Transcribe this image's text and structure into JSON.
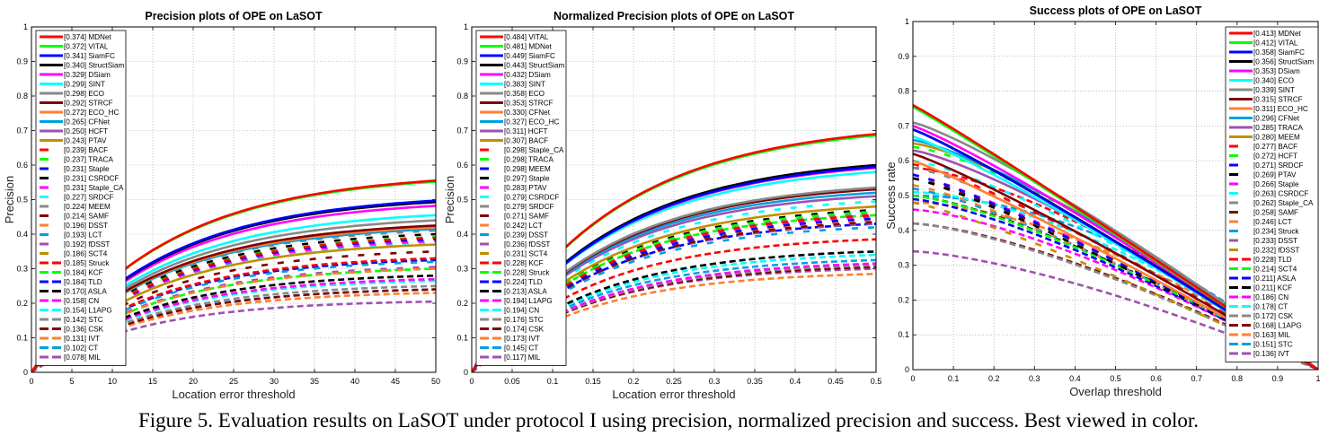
{
  "caption": "Figure 5. Evaluation results on LaSOT under protocol I using precision, normalized precision and success. Best viewed in color.",
  "chart_data": [
    {
      "type": "line",
      "title": "Precision plots of OPE on LaSOT",
      "xlabel": "Location error threshold",
      "ylabel": "Precision",
      "xlim": [
        0,
        50
      ],
      "ylim": [
        0,
        1
      ],
      "xticks": [
        "0",
        "5",
        "10",
        "15",
        "20",
        "25",
        "30",
        "35",
        "40",
        "45",
        "50"
      ],
      "yticks": [
        "0",
        "0.1",
        "0.2",
        "0.3",
        "0.4",
        "0.5",
        "0.6",
        "0.7",
        "0.8",
        "0.9",
        "1"
      ],
      "grid": true,
      "legend_position": "top-left",
      "curve_kind": "rising",
      "series": [
        {
          "name": "MDNet",
          "score": "0.374",
          "color": "#ff0000",
          "style": "solid",
          "end": 0.555
        },
        {
          "name": "VITAL",
          "score": "0.372",
          "color": "#00ff00",
          "style": "solid",
          "end": 0.552
        },
        {
          "name": "SiamFC",
          "score": "0.341",
          "color": "#0000ff",
          "style": "solid",
          "end": 0.497
        },
        {
          "name": "StructSiam",
          "score": "0.340",
          "color": "#000000",
          "style": "solid",
          "end": 0.493
        },
        {
          "name": "DSiam",
          "score": "0.329",
          "color": "#ff00ff",
          "style": "solid",
          "end": 0.482
        },
        {
          "name": "SINT",
          "score": "0.299",
          "color": "#00ffff",
          "style": "solid",
          "end": 0.455
        },
        {
          "name": "ECO",
          "score": "0.298",
          "color": "#888888",
          "style": "solid",
          "end": 0.44
        },
        {
          "name": "STRCF",
          "score": "0.292",
          "color": "#800000",
          "style": "solid",
          "end": 0.425
        },
        {
          "name": "ECO_HC",
          "score": "0.272",
          "color": "#ff8030",
          "style": "solid",
          "end": 0.42
        },
        {
          "name": "CFNet",
          "score": "0.265",
          "color": "#00a0e0",
          "style": "solid",
          "end": 0.415
        },
        {
          "name": "HCFT",
          "score": "0.250",
          "color": "#a050b0",
          "style": "solid",
          "end": 0.418
        },
        {
          "name": "PTAV",
          "score": "0.243",
          "color": "#c09000",
          "style": "solid",
          "end": 0.37
        },
        {
          "name": "BACF",
          "score": "0.239",
          "color": "#ff0000",
          "style": "sparse",
          "end": 0.39
        },
        {
          "name": "TRACA",
          "score": "0.237",
          "color": "#00ff00",
          "style": "sparse",
          "end": 0.392
        },
        {
          "name": "Staple",
          "score": "0.231",
          "color": "#0000ff",
          "style": "sparse",
          "end": 0.386
        },
        {
          "name": "CSRDCF",
          "score": "0.231",
          "color": "#000000",
          "style": "sparse",
          "end": 0.4
        },
        {
          "name": "Staple_CA",
          "score": "0.231",
          "color": "#ff00ff",
          "style": "sparse",
          "end": 0.38
        },
        {
          "name": "SRDCF",
          "score": "0.227",
          "color": "#00ffff",
          "style": "sparse",
          "end": 0.375
        },
        {
          "name": "MEEM",
          "score": "0.224",
          "color": "#888888",
          "style": "sparse",
          "end": 0.41
        },
        {
          "name": "SAMF",
          "score": "0.214",
          "color": "#800000",
          "style": "sparse",
          "end": 0.35
        },
        {
          "name": "DSST",
          "score": "0.196",
          "color": "#ff8030",
          "style": "sparse",
          "end": 0.3
        },
        {
          "name": "LCT",
          "score": "0.193",
          "color": "#00a0e0",
          "style": "sparse",
          "end": 0.32
        },
        {
          "name": "fDSST",
          "score": "0.192",
          "color": "#a050b0",
          "style": "sparse",
          "end": 0.305
        },
        {
          "name": "SCT4",
          "score": "0.186",
          "color": "#c09000",
          "style": "sparse",
          "end": 0.3
        },
        {
          "name": "Struck",
          "score": "0.185",
          "color": "#ff0000",
          "style": "dashed",
          "end": 0.33
        },
        {
          "name": "KCF",
          "score": "0.184",
          "color": "#00ff00",
          "style": "dashed",
          "end": 0.3
        },
        {
          "name": "TLD",
          "score": "0.184",
          "color": "#0000ff",
          "style": "dashed",
          "end": 0.325
        },
        {
          "name": "ASLA",
          "score": "0.170",
          "color": "#000000",
          "style": "dashed",
          "end": 0.28
        },
        {
          "name": "CN",
          "score": "0.158",
          "color": "#ff00ff",
          "style": "dashed",
          "end": 0.27
        },
        {
          "name": "L1APG",
          "score": "0.154",
          "color": "#00ffff",
          "style": "dashed",
          "end": 0.265
        },
        {
          "name": "STC",
          "score": "0.142",
          "color": "#888888",
          "style": "dashed",
          "end": 0.25
        },
        {
          "name": "CSK",
          "score": "0.136",
          "color": "#800000",
          "style": "dashed",
          "end": 0.24
        },
        {
          "name": "IVT",
          "score": "0.131",
          "color": "#ff8030",
          "style": "dashed",
          "end": 0.23
        },
        {
          "name": "CT",
          "score": "0.102",
          "color": "#00a0e0",
          "style": "dashed",
          "end": 0.24
        },
        {
          "name": "MIL",
          "score": "0.078",
          "color": "#a050b0",
          "style": "dashed",
          "end": 0.205
        }
      ]
    },
    {
      "type": "line",
      "title": "Normalized Precision plots of OPE on LaSOT",
      "xlabel": "Location error threshold",
      "ylabel": "Precision",
      "xlim": [
        0,
        0.5
      ],
      "ylim": [
        0,
        1
      ],
      "xticks": [
        "0",
        "0.05",
        "0.1",
        "0.15",
        "0.2",
        "0.25",
        "0.3",
        "0.35",
        "0.4",
        "0.45",
        "0.5"
      ],
      "yticks": [
        "0",
        "0.1",
        "0.2",
        "0.3",
        "0.4",
        "0.5",
        "0.6",
        "0.7",
        "0.8",
        "0.9",
        "1"
      ],
      "grid": true,
      "legend_position": "top-left",
      "curve_kind": "rising",
      "series": [
        {
          "name": "VITAL",
          "score": "0.484",
          "color": "#ff0000",
          "style": "solid",
          "end": 0.69
        },
        {
          "name": "MDNet",
          "score": "0.481",
          "color": "#00ff00",
          "style": "solid",
          "end": 0.686
        },
        {
          "name": "SiamFC",
          "score": "0.449",
          "color": "#0000ff",
          "style": "solid",
          "end": 0.595
        },
        {
          "name": "StructSiam",
          "score": "0.443",
          "color": "#000000",
          "style": "solid",
          "end": 0.6
        },
        {
          "name": "DSiam",
          "score": "0.432",
          "color": "#ff00ff",
          "style": "solid",
          "end": 0.592
        },
        {
          "name": "SINT",
          "score": "0.383",
          "color": "#00ffff",
          "style": "solid",
          "end": 0.58
        },
        {
          "name": "ECO",
          "score": "0.358",
          "color": "#888888",
          "style": "solid",
          "end": 0.535
        },
        {
          "name": "STRCF",
          "score": "0.353",
          "color": "#800000",
          "style": "solid",
          "end": 0.53
        },
        {
          "name": "CFNet",
          "score": "0.330",
          "color": "#ff8030",
          "style": "solid",
          "end": 0.53
        },
        {
          "name": "ECO_HC",
          "score": "0.327",
          "color": "#00a0e0",
          "style": "solid",
          "end": 0.52
        },
        {
          "name": "HCFT",
          "score": "0.311",
          "color": "#a050b0",
          "style": "solid",
          "end": 0.51
        },
        {
          "name": "BACF",
          "score": "0.307",
          "color": "#c09000",
          "style": "solid",
          "end": 0.48
        },
        {
          "name": "Staple_CA",
          "score": "0.298",
          "color": "#ff0000",
          "style": "sparse",
          "end": 0.455
        },
        {
          "name": "TRACA",
          "score": "0.298",
          "color": "#00ff00",
          "style": "sparse",
          "end": 0.465
        },
        {
          "name": "MEEM",
          "score": "0.298",
          "color": "#0000ff",
          "style": "sparse",
          "end": 0.445
        },
        {
          "name": "Staple",
          "score": "0.297",
          "color": "#000000",
          "style": "sparse",
          "end": 0.47
        },
        {
          "name": "PTAV",
          "score": "0.283",
          "color": "#ff00ff",
          "style": "sparse",
          "end": 0.45
        },
        {
          "name": "CSRDCF",
          "score": "0.279",
          "color": "#00ffff",
          "style": "sparse",
          "end": 0.495
        },
        {
          "name": "SRDCF",
          "score": "0.279",
          "color": "#888888",
          "style": "sparse",
          "end": 0.46
        },
        {
          "name": "SAMF",
          "score": "0.271",
          "color": "#800000",
          "style": "sparse",
          "end": 0.435
        },
        {
          "name": "LCT",
          "score": "0.242",
          "color": "#ff8030",
          "style": "sparse",
          "end": 0.44
        },
        {
          "name": "DSST",
          "score": "0.239",
          "color": "#00a0e0",
          "style": "sparse",
          "end": 0.42
        },
        {
          "name": "fDSST",
          "score": "0.236",
          "color": "#a050b0",
          "style": "sparse",
          "end": 0.43
        },
        {
          "name": "SCT4",
          "score": "0.231",
          "color": "#c09000",
          "style": "sparse",
          "end": 0.44
        },
        {
          "name": "KCF",
          "score": "0.228",
          "color": "#ff0000",
          "style": "dashed",
          "end": 0.385
        },
        {
          "name": "Struck",
          "score": "0.228",
          "color": "#00ff00",
          "style": "dashed",
          "end": 0.455
        },
        {
          "name": "TLD",
          "score": "0.224",
          "color": "#0000ff",
          "style": "dashed",
          "end": 0.43
        },
        {
          "name": "ASLA",
          "score": "0.213",
          "color": "#000000",
          "style": "dashed",
          "end": 0.35
        },
        {
          "name": "L1APG",
          "score": "0.194",
          "color": "#ff00ff",
          "style": "dashed",
          "end": 0.315
        },
        {
          "name": "CN",
          "score": "0.194",
          "color": "#00ffff",
          "style": "dashed",
          "end": 0.34
        },
        {
          "name": "STC",
          "score": "0.176",
          "color": "#888888",
          "style": "dashed",
          "end": 0.31
        },
        {
          "name": "CSK",
          "score": "0.174",
          "color": "#800000",
          "style": "dashed",
          "end": 0.305
        },
        {
          "name": "IVT",
          "score": "0.173",
          "color": "#ff8030",
          "style": "dashed",
          "end": 0.285
        },
        {
          "name": "CT",
          "score": "0.145",
          "color": "#00a0e0",
          "style": "dashed",
          "end": 0.325
        },
        {
          "name": "MIL",
          "score": "0.117",
          "color": "#a050b0",
          "style": "dashed",
          "end": 0.3
        }
      ]
    },
    {
      "type": "line",
      "title": "Success plots of OPE on LaSOT",
      "xlabel": "Overlap threshold",
      "ylabel": "Success rate",
      "xlim": [
        0,
        1
      ],
      "ylim": [
        0,
        1
      ],
      "xticks": [
        "0",
        "0.1",
        "0.2",
        "0.3",
        "0.4",
        "0.5",
        "0.6",
        "0.7",
        "0.8",
        "0.9",
        "1"
      ],
      "yticks": [
        "0",
        "0.1",
        "0.2",
        "0.3",
        "0.4",
        "0.5",
        "0.6",
        "0.7",
        "0.8",
        "0.9",
        "1"
      ],
      "grid": true,
      "legend_position": "top-right",
      "curve_kind": "falling",
      "series": [
        {
          "name": "MDNet",
          "score": "0.413",
          "color": "#ff0000",
          "style": "solid",
          "start": 0.76
        },
        {
          "name": "VITAL",
          "score": "0.412",
          "color": "#00ff00",
          "style": "solid",
          "start": 0.755
        },
        {
          "name": "SiamFC",
          "score": "0.358",
          "color": "#0000ff",
          "style": "solid",
          "start": 0.69
        },
        {
          "name": "StructSiam",
          "score": "0.356",
          "color": "#000000",
          "style": "solid",
          "start": 0.69
        },
        {
          "name": "DSiam",
          "score": "0.353",
          "color": "#ff00ff",
          "style": "solid",
          "start": 0.7
        },
        {
          "name": "ECO",
          "score": "0.340",
          "color": "#00ffff",
          "style": "solid",
          "start": 0.67
        },
        {
          "name": "SINT",
          "score": "0.339",
          "color": "#888888",
          "style": "solid",
          "start": 0.71
        },
        {
          "name": "STRCF",
          "score": "0.315",
          "color": "#800000",
          "style": "solid",
          "start": 0.62
        },
        {
          "name": "ECO_HC",
          "score": "0.311",
          "color": "#ff8030",
          "style": "solid",
          "start": 0.6
        },
        {
          "name": "CFNet",
          "score": "0.296",
          "color": "#00a0e0",
          "style": "solid",
          "start": 0.66
        },
        {
          "name": "TRACA",
          "score": "0.285",
          "color": "#a050b0",
          "style": "solid",
          "start": 0.63
        },
        {
          "name": "MEEM",
          "score": "0.280",
          "color": "#c09000",
          "style": "solid",
          "start": 0.65
        },
        {
          "name": "BACF",
          "score": "0.277",
          "color": "#ff0000",
          "style": "sparse",
          "start": 0.59
        },
        {
          "name": "HCFT",
          "score": "0.272",
          "color": "#00ff00",
          "style": "sparse",
          "start": 0.64
        },
        {
          "name": "SRDCF",
          "score": "0.271",
          "color": "#0000ff",
          "style": "sparse",
          "start": 0.56
        },
        {
          "name": "PTAV",
          "score": "0.269",
          "color": "#000000",
          "style": "sparse",
          "start": 0.55
        },
        {
          "name": "Staple",
          "score": "0.266",
          "color": "#ff00ff",
          "style": "sparse",
          "start": 0.56
        },
        {
          "name": "CSRDCF",
          "score": "0.263",
          "color": "#00ffff",
          "style": "sparse",
          "start": 0.6
        },
        {
          "name": "Staple_CA",
          "score": "0.262",
          "color": "#888888",
          "style": "sparse",
          "start": 0.58
        },
        {
          "name": "SAMF",
          "score": "0.258",
          "color": "#800000",
          "style": "sparse",
          "start": 0.55
        },
        {
          "name": "LCT",
          "score": "0.246",
          "color": "#ff8030",
          "style": "sparse",
          "start": 0.53
        },
        {
          "name": "Struck",
          "score": "0.234",
          "color": "#00a0e0",
          "style": "sparse",
          "start": 0.52
        },
        {
          "name": "DSST",
          "score": "0.233",
          "color": "#a050b0",
          "style": "sparse",
          "start": 0.52
        },
        {
          "name": "fDSST",
          "score": "0.232",
          "color": "#c09000",
          "style": "sparse",
          "start": 0.48
        },
        {
          "name": "TLD",
          "score": "0.228",
          "color": "#ff0000",
          "style": "dashed",
          "start": 0.58
        },
        {
          "name": "SCT4",
          "score": "0.214",
          "color": "#00ff00",
          "style": "dashed",
          "start": 0.5
        },
        {
          "name": "ASLA",
          "score": "0.211",
          "color": "#0000ff",
          "style": "dashed",
          "start": 0.49
        },
        {
          "name": "KCF",
          "score": "0.211",
          "color": "#000000",
          "style": "dashed",
          "start": 0.5
        },
        {
          "name": "CN",
          "score": "0.186",
          "color": "#ff00ff",
          "style": "dashed",
          "start": 0.46
        },
        {
          "name": "CT",
          "score": "0.178",
          "color": "#00ffff",
          "style": "dashed",
          "start": 0.51
        },
        {
          "name": "CSK",
          "score": "0.172",
          "color": "#888888",
          "style": "dashed",
          "start": 0.42
        },
        {
          "name": "L1APG",
          "score": "0.168",
          "color": "#800000",
          "style": "dashed",
          "start": 0.42
        },
        {
          "name": "MIL",
          "score": "0.163",
          "color": "#ff8030",
          "style": "dashed",
          "start": 0.48
        },
        {
          "name": "STC",
          "score": "0.151",
          "color": "#00a0e0",
          "style": "dashed",
          "start": 0.5
        },
        {
          "name": "IVT",
          "score": "0.136",
          "color": "#a050b0",
          "style": "dashed",
          "start": 0.34
        }
      ]
    }
  ]
}
